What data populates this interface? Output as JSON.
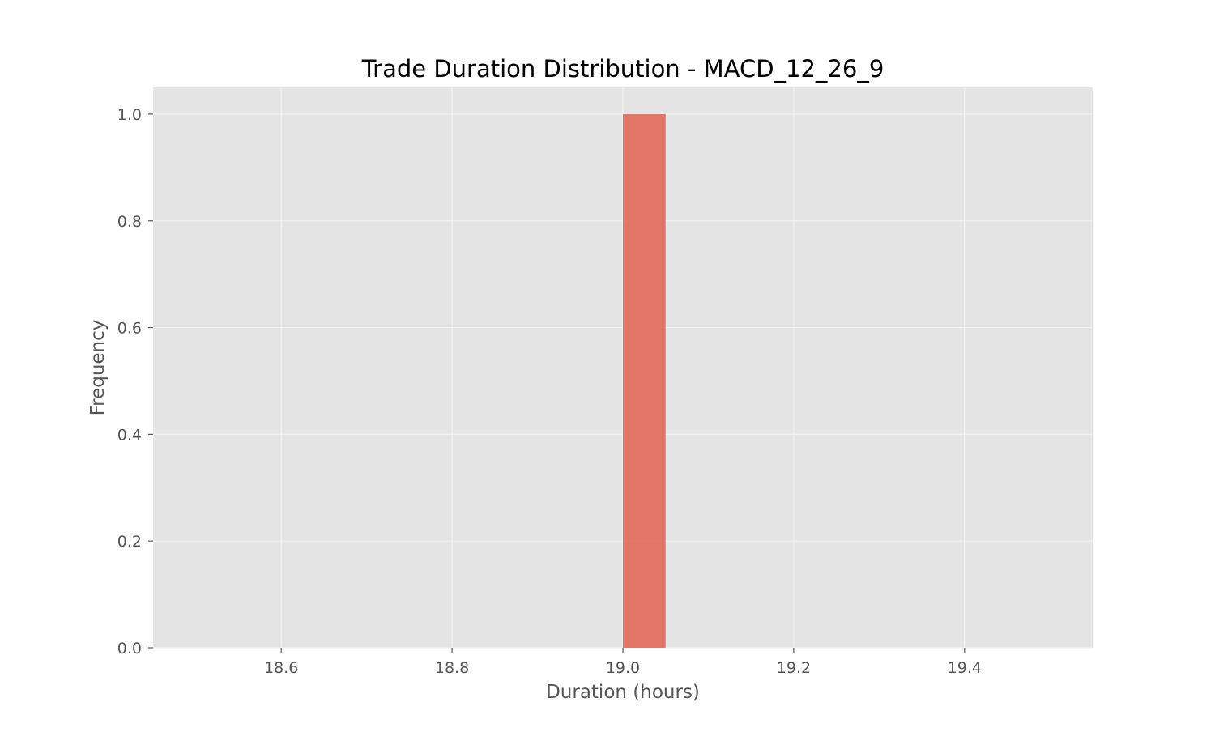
{
  "chart_data": {
    "type": "bar",
    "title": "Trade Duration Distribution - MACD_12_26_9",
    "xlabel": "Duration (hours)",
    "ylabel": "Frequency",
    "xlim": [
      18.45,
      19.55
    ],
    "ylim": [
      0,
      1.05
    ],
    "x_ticks": [
      "18.6",
      "18.8",
      "19.0",
      "19.2",
      "19.4"
    ],
    "y_ticks": [
      "0.0",
      "0.2",
      "0.4",
      "0.6",
      "0.8",
      "1.0"
    ],
    "bins": [
      {
        "start": 19.0,
        "end": 19.05,
        "count": 1
      }
    ],
    "grid": true,
    "style": "ggplot",
    "colors": {
      "plot_background": "#e5e5e5",
      "grid": "#f2f2f2",
      "bar": "#e07060"
    }
  }
}
